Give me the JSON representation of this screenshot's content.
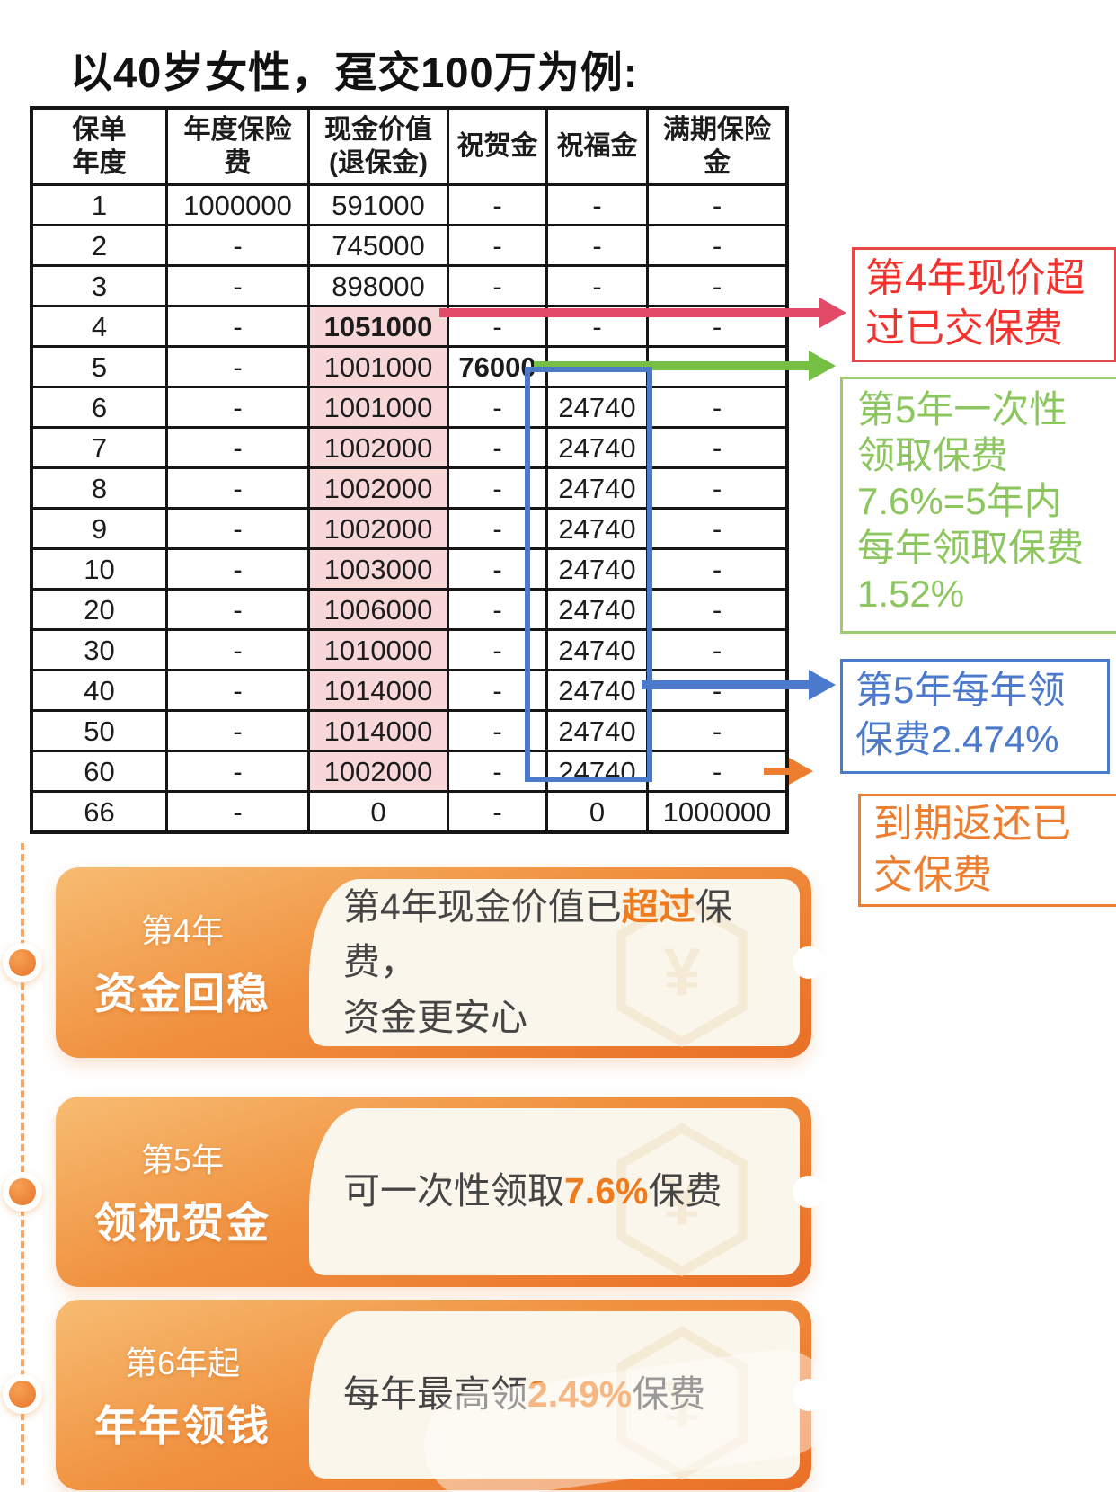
{
  "title": "以40岁女性，趸交100万为例:",
  "table": {
    "headers": [
      "保单\n年度",
      "年度保险\n费",
      "现金价值\n(退保金)",
      "祝贺金",
      "祝福金",
      "满期保险\n金"
    ],
    "rows": [
      {
        "year": "1",
        "premium": "1000000",
        "cash": "591000",
        "congrat": "-",
        "blessing": "-",
        "maturity": "-",
        "cash_pink": false,
        "cash_red": false
      },
      {
        "year": "2",
        "premium": "-",
        "cash": "745000",
        "congrat": "-",
        "blessing": "-",
        "maturity": "-",
        "cash_pink": false,
        "cash_red": false
      },
      {
        "year": "3",
        "premium": "-",
        "cash": "898000",
        "congrat": "-",
        "blessing": "-",
        "maturity": "-",
        "cash_pink": false,
        "cash_red": false
      },
      {
        "year": "4",
        "premium": "-",
        "cash": "1051000",
        "congrat": "-",
        "blessing": "-",
        "maturity": "-",
        "cash_pink": true,
        "cash_red": true
      },
      {
        "year": "5",
        "premium": "-",
        "cash": "1001000",
        "congrat": "76000",
        "blessing": "",
        "maturity": "",
        "cash_pink": true,
        "cash_red": false
      },
      {
        "year": "6",
        "premium": "-",
        "cash": "1001000",
        "congrat": "-",
        "blessing": "24740",
        "maturity": "-",
        "cash_pink": true,
        "cash_red": false
      },
      {
        "year": "7",
        "premium": "-",
        "cash": "1002000",
        "congrat": "-",
        "blessing": "24740",
        "maturity": "-",
        "cash_pink": true,
        "cash_red": false
      },
      {
        "year": "8",
        "premium": "-",
        "cash": "1002000",
        "congrat": "-",
        "blessing": "24740",
        "maturity": "-",
        "cash_pink": true,
        "cash_red": false
      },
      {
        "year": "9",
        "premium": "-",
        "cash": "1002000",
        "congrat": "-",
        "blessing": "24740",
        "maturity": "-",
        "cash_pink": true,
        "cash_red": false
      },
      {
        "year": "10",
        "premium": "-",
        "cash": "1003000",
        "congrat": "-",
        "blessing": "24740",
        "maturity": "-",
        "cash_pink": true,
        "cash_red": false
      },
      {
        "year": "20",
        "premium": "-",
        "cash": "1006000",
        "congrat": "-",
        "blessing": "24740",
        "maturity": "-",
        "cash_pink": true,
        "cash_red": false
      },
      {
        "year": "30",
        "premium": "-",
        "cash": "1010000",
        "congrat": "-",
        "blessing": "24740",
        "maturity": "-",
        "cash_pink": true,
        "cash_red": false
      },
      {
        "year": "40",
        "premium": "-",
        "cash": "1014000",
        "congrat": "-",
        "blessing": "24740",
        "maturity": "-",
        "cash_pink": true,
        "cash_red": false
      },
      {
        "year": "50",
        "premium": "-",
        "cash": "1014000",
        "congrat": "-",
        "blessing": "24740",
        "maturity": "-",
        "cash_pink": true,
        "cash_red": false
      },
      {
        "year": "60",
        "premium": "-",
        "cash": "1002000",
        "congrat": "-",
        "blessing": "24740",
        "maturity": "-",
        "cash_pink": true,
        "cash_red": false
      },
      {
        "year": "66",
        "premium": "-",
        "cash": "0",
        "congrat": "-",
        "blessing": "0",
        "maturity": "1000000",
        "cash_pink": false,
        "cash_red": false
      }
    ]
  },
  "annotations": {
    "red": "第4年现价超\n过已交保费",
    "green": "第5年一次性\n领取保费\n7.6%=5年内\n每年领取保费\n1.52%",
    "blue": "第5年每年领\n保费2.474%",
    "orange": "到期返还已\n交保费"
  },
  "banners": [
    {
      "tag": "第4年",
      "name": "资金回稳",
      "content": [
        {
          "t": "第4年现金价值已"
        },
        {
          "t": "超过",
          "em": true
        },
        {
          "t": "保费，"
        },
        {
          "br": true
        },
        {
          "t": "资金更安心"
        }
      ]
    },
    {
      "tag": "第5年",
      "name": "领祝贺金",
      "content": [
        {
          "t": "可一次性领取"
        },
        {
          "t": "7.6%",
          "em": true
        },
        {
          "t": "保费"
        }
      ]
    },
    {
      "tag": "第6年起",
      "name": "年年领钱",
      "content": [
        {
          "t": "每年最高领"
        },
        {
          "t": "2.49%",
          "em": true
        },
        {
          "t": "保费"
        }
      ]
    }
  ],
  "icons": {
    "yen": "¥"
  },
  "colors": {
    "value_red": "#ec1b24",
    "value_rose": "#e25b6d",
    "pink_bg": "#f8d7d9",
    "crimson_arrow": "#e24a67",
    "green_arrow": "#74bf44",
    "green_text": "#8cc65e",
    "blue": "#4b79cb",
    "orange": "#ee7e2f",
    "banner_orange": "#ef8637"
  }
}
